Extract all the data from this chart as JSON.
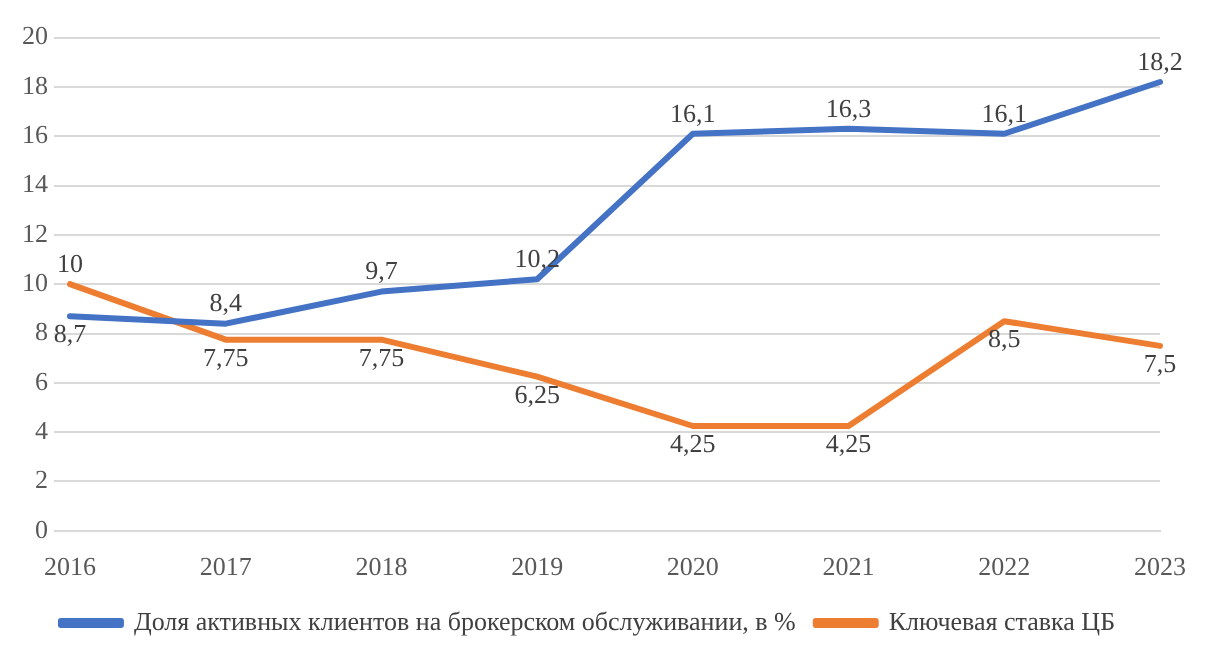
{
  "chart_data": {
    "type": "line",
    "categories": [
      "2016",
      "2017",
      "2018",
      "2019",
      "2020",
      "2021",
      "2022",
      "2023"
    ],
    "series": [
      {
        "name": "Доля активных клиентов на брокерском обслуживании, в %",
        "color": "#4472c4",
        "values": [
          8.7,
          8.4,
          9.7,
          10.2,
          16.1,
          16.3,
          16.1,
          18.2
        ],
        "value_labels": [
          "8,7",
          "8,4",
          "9,7",
          "10,2",
          "16,1",
          "16,3",
          "16,1",
          "18,2"
        ]
      },
      {
        "name": "Ключевая ставка ЦБ",
        "color": "#ed7d31",
        "values": [
          10,
          7.75,
          7.75,
          6.25,
          4.25,
          4.25,
          8.5,
          7.5
        ],
        "value_labels": [
          "10",
          "7,75",
          "7,75",
          "6,25",
          "4,25",
          "4,25",
          "8,5",
          "7,5"
        ]
      }
    ],
    "ylim": [
      0,
      20
    ],
    "yticks": [
      0,
      2,
      4,
      6,
      8,
      10,
      12,
      14,
      16,
      18,
      20
    ],
    "grid": "y",
    "legend": "bottom",
    "marker": "none",
    "line_style": "solid"
  }
}
